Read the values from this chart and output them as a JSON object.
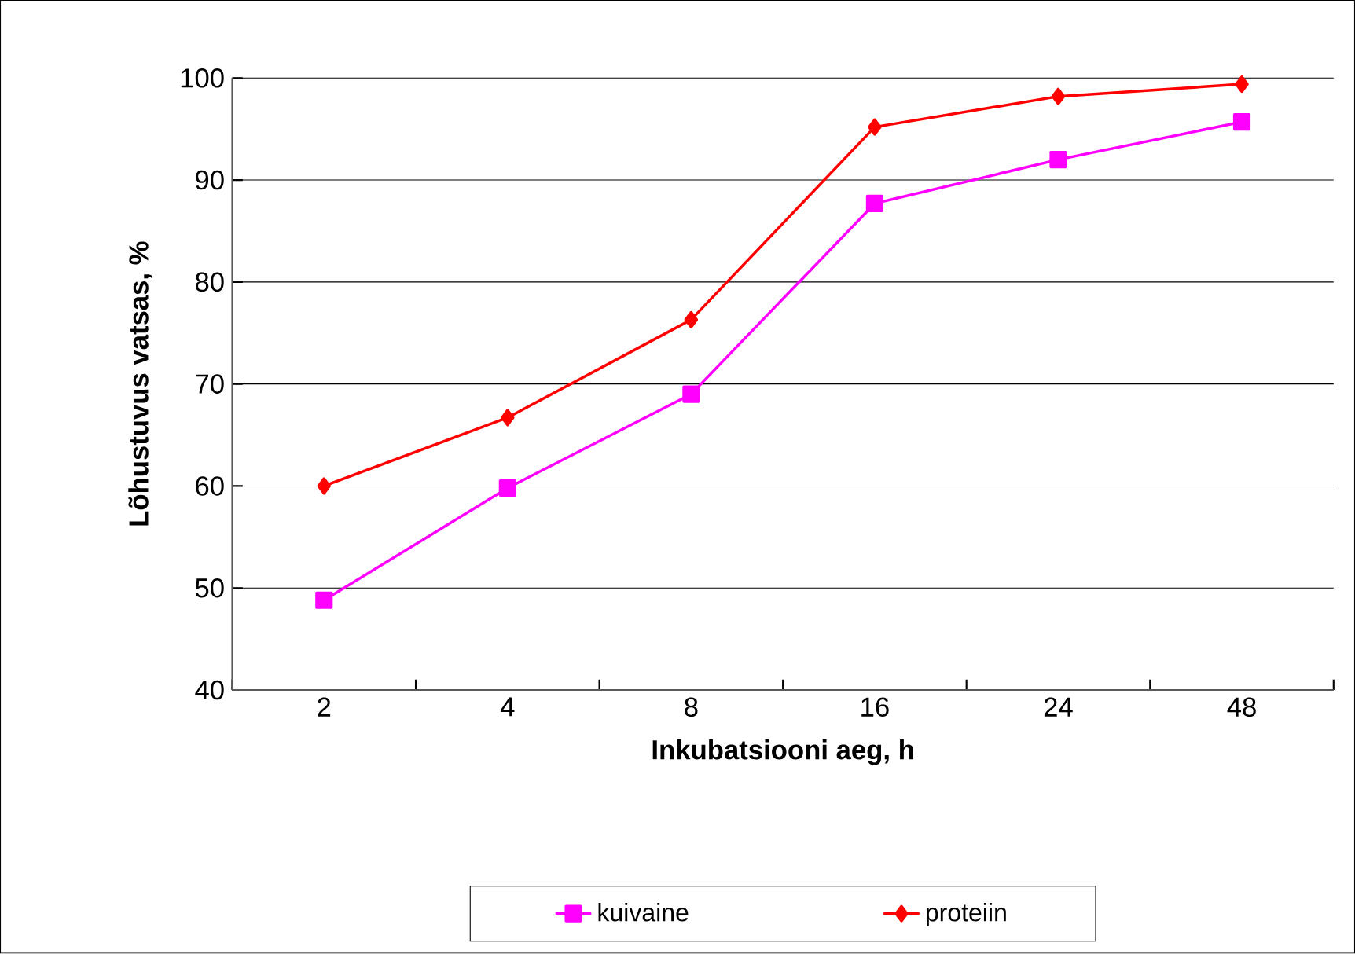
{
  "chart_data": {
    "type": "line",
    "xlabel": "Inkubatsiooni aeg, h",
    "ylabel": "Lõhustuvus vatsas, %",
    "categories": [
      "2",
      "4",
      "8",
      "16",
      "24",
      "48"
    ],
    "series": [
      {
        "name": "kuivaine",
        "color": "#ff00ff",
        "marker": "square",
        "values": [
          48.8,
          59.8,
          69.0,
          87.7,
          92.0,
          95.7
        ]
      },
      {
        "name": "proteiin",
        "color": "#ff0000",
        "marker": "diamond",
        "values": [
          60.0,
          66.7,
          76.3,
          95.2,
          98.2,
          99.4
        ]
      }
    ],
    "ylim": [
      40,
      100
    ],
    "yticks": [
      40,
      50,
      60,
      70,
      80,
      90,
      100
    ],
    "grid": "y",
    "legend": "bottom",
    "line_style": "solid"
  }
}
